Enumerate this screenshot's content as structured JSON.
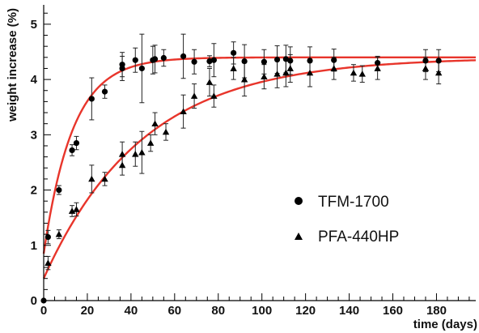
{
  "chart_data": {
    "type": "scatter",
    "xlabel": "time  (days)",
    "ylabel": "weight increase  (%)",
    "xlim": [
      0,
      198
    ],
    "ylim": [
      0,
      5.35
    ],
    "x_ticks": [
      0,
      20,
      40,
      60,
      80,
      100,
      120,
      140,
      160,
      180
    ],
    "y_ticks": [
      0,
      1,
      2,
      3,
      4,
      5
    ],
    "legend_position": "center-right",
    "curve_color": "#e8352b",
    "series": [
      {
        "name": "TFM-1700",
        "marker": "circle",
        "points": [
          {
            "x": 0,
            "y": 0.0,
            "err": 0.0
          },
          {
            "x": 2,
            "y": 1.15,
            "err": 0.12
          },
          {
            "x": 7,
            "y": 2.0,
            "err": 0.08
          },
          {
            "x": 13,
            "y": 2.72,
            "err": 0.1
          },
          {
            "x": 15,
            "y": 2.85,
            "err": 0.12
          },
          {
            "x": 22,
            "y": 3.65,
            "err": 0.38
          },
          {
            "x": 28,
            "y": 3.78,
            "err": 0.12
          },
          {
            "x": 36,
            "y": 4.2,
            "err": 0.22
          },
          {
            "x": 36,
            "y": 4.27,
            "err": 0.22
          },
          {
            "x": 42,
            "y": 4.35,
            "err": 0.22
          },
          {
            "x": 45,
            "y": 4.2,
            "err": 0.62
          },
          {
            "x": 50,
            "y": 4.35,
            "err": 0.25
          },
          {
            "x": 51,
            "y": 4.37,
            "err": 0.25
          },
          {
            "x": 55,
            "y": 4.39,
            "err": 0.15
          },
          {
            "x": 64,
            "y": 4.42,
            "err": 0.4
          },
          {
            "x": 69,
            "y": 4.32,
            "err": 0.22
          },
          {
            "x": 76,
            "y": 4.33,
            "err": 0.1
          },
          {
            "x": 78,
            "y": 4.35,
            "err": 0.3
          },
          {
            "x": 87,
            "y": 4.48,
            "err": 0.2
          },
          {
            "x": 92,
            "y": 4.33,
            "err": 0.3
          },
          {
            "x": 101,
            "y": 4.32,
            "err": 0.22
          },
          {
            "x": 107,
            "y": 4.36,
            "err": 0.25
          },
          {
            "x": 111,
            "y": 4.37,
            "err": 0.25
          },
          {
            "x": 113,
            "y": 4.34,
            "err": 0.25
          },
          {
            "x": 122,
            "y": 4.34,
            "err": 0.25
          },
          {
            "x": 133,
            "y": 4.35,
            "err": 0.2
          },
          {
            "x": 153,
            "y": 4.3,
            "err": 0.12
          },
          {
            "x": 175,
            "y": 4.34,
            "err": 0.2
          },
          {
            "x": 181,
            "y": 4.34,
            "err": 0.2
          }
        ]
      },
      {
        "name": "PFA-440HP",
        "marker": "triangle",
        "points": [
          {
            "x": 2,
            "y": 0.68,
            "err": 0.12
          },
          {
            "x": 7,
            "y": 1.2,
            "err": 0.08
          },
          {
            "x": 13,
            "y": 1.62,
            "err": 0.1
          },
          {
            "x": 15,
            "y": 1.65,
            "err": 0.12
          },
          {
            "x": 22,
            "y": 2.2,
            "err": 0.25
          },
          {
            "x": 28,
            "y": 2.2,
            "err": 0.12
          },
          {
            "x": 36,
            "y": 2.45,
            "err": 0.18
          },
          {
            "x": 36,
            "y": 2.65,
            "err": 0.22
          },
          {
            "x": 42,
            "y": 2.65,
            "err": 0.22
          },
          {
            "x": 45,
            "y": 2.68,
            "err": 0.38
          },
          {
            "x": 49,
            "y": 2.85,
            "err": 0.15
          },
          {
            "x": 51,
            "y": 3.2,
            "err": 0.2
          },
          {
            "x": 56,
            "y": 3.05,
            "err": 0.15
          },
          {
            "x": 64,
            "y": 3.42,
            "err": 0.3
          },
          {
            "x": 69,
            "y": 3.7,
            "err": 0.22
          },
          {
            "x": 76,
            "y": 3.95,
            "err": 0.25
          },
          {
            "x": 78,
            "y": 3.7,
            "err": 0.2
          },
          {
            "x": 87,
            "y": 4.2,
            "err": 0.2
          },
          {
            "x": 92,
            "y": 4.0,
            "err": 0.3
          },
          {
            "x": 101,
            "y": 4.05,
            "err": 0.22
          },
          {
            "x": 107,
            "y": 4.1,
            "err": 0.25
          },
          {
            "x": 111,
            "y": 4.12,
            "err": 0.25
          },
          {
            "x": 113,
            "y": 4.2,
            "err": 0.25
          },
          {
            "x": 122,
            "y": 4.12,
            "err": 0.25
          },
          {
            "x": 133,
            "y": 4.2,
            "err": 0.2
          },
          {
            "x": 142,
            "y": 4.12,
            "err": 0.15
          },
          {
            "x": 146,
            "y": 4.1,
            "err": 0.15
          },
          {
            "x": 153,
            "y": 4.2,
            "err": 0.2
          },
          {
            "x": 175,
            "y": 4.2,
            "err": 0.2
          },
          {
            "x": 181,
            "y": 4.12,
            "err": 0.2
          }
        ]
      }
    ],
    "fit_curves": [
      {
        "series": "TFM-1700",
        "asymptote": 4.4,
        "offset": 0.85,
        "rate": 0.075
      },
      {
        "series": "PFA-440HP",
        "asymptote": 4.4,
        "offset": 0.4,
        "rate": 0.022
      }
    ]
  }
}
